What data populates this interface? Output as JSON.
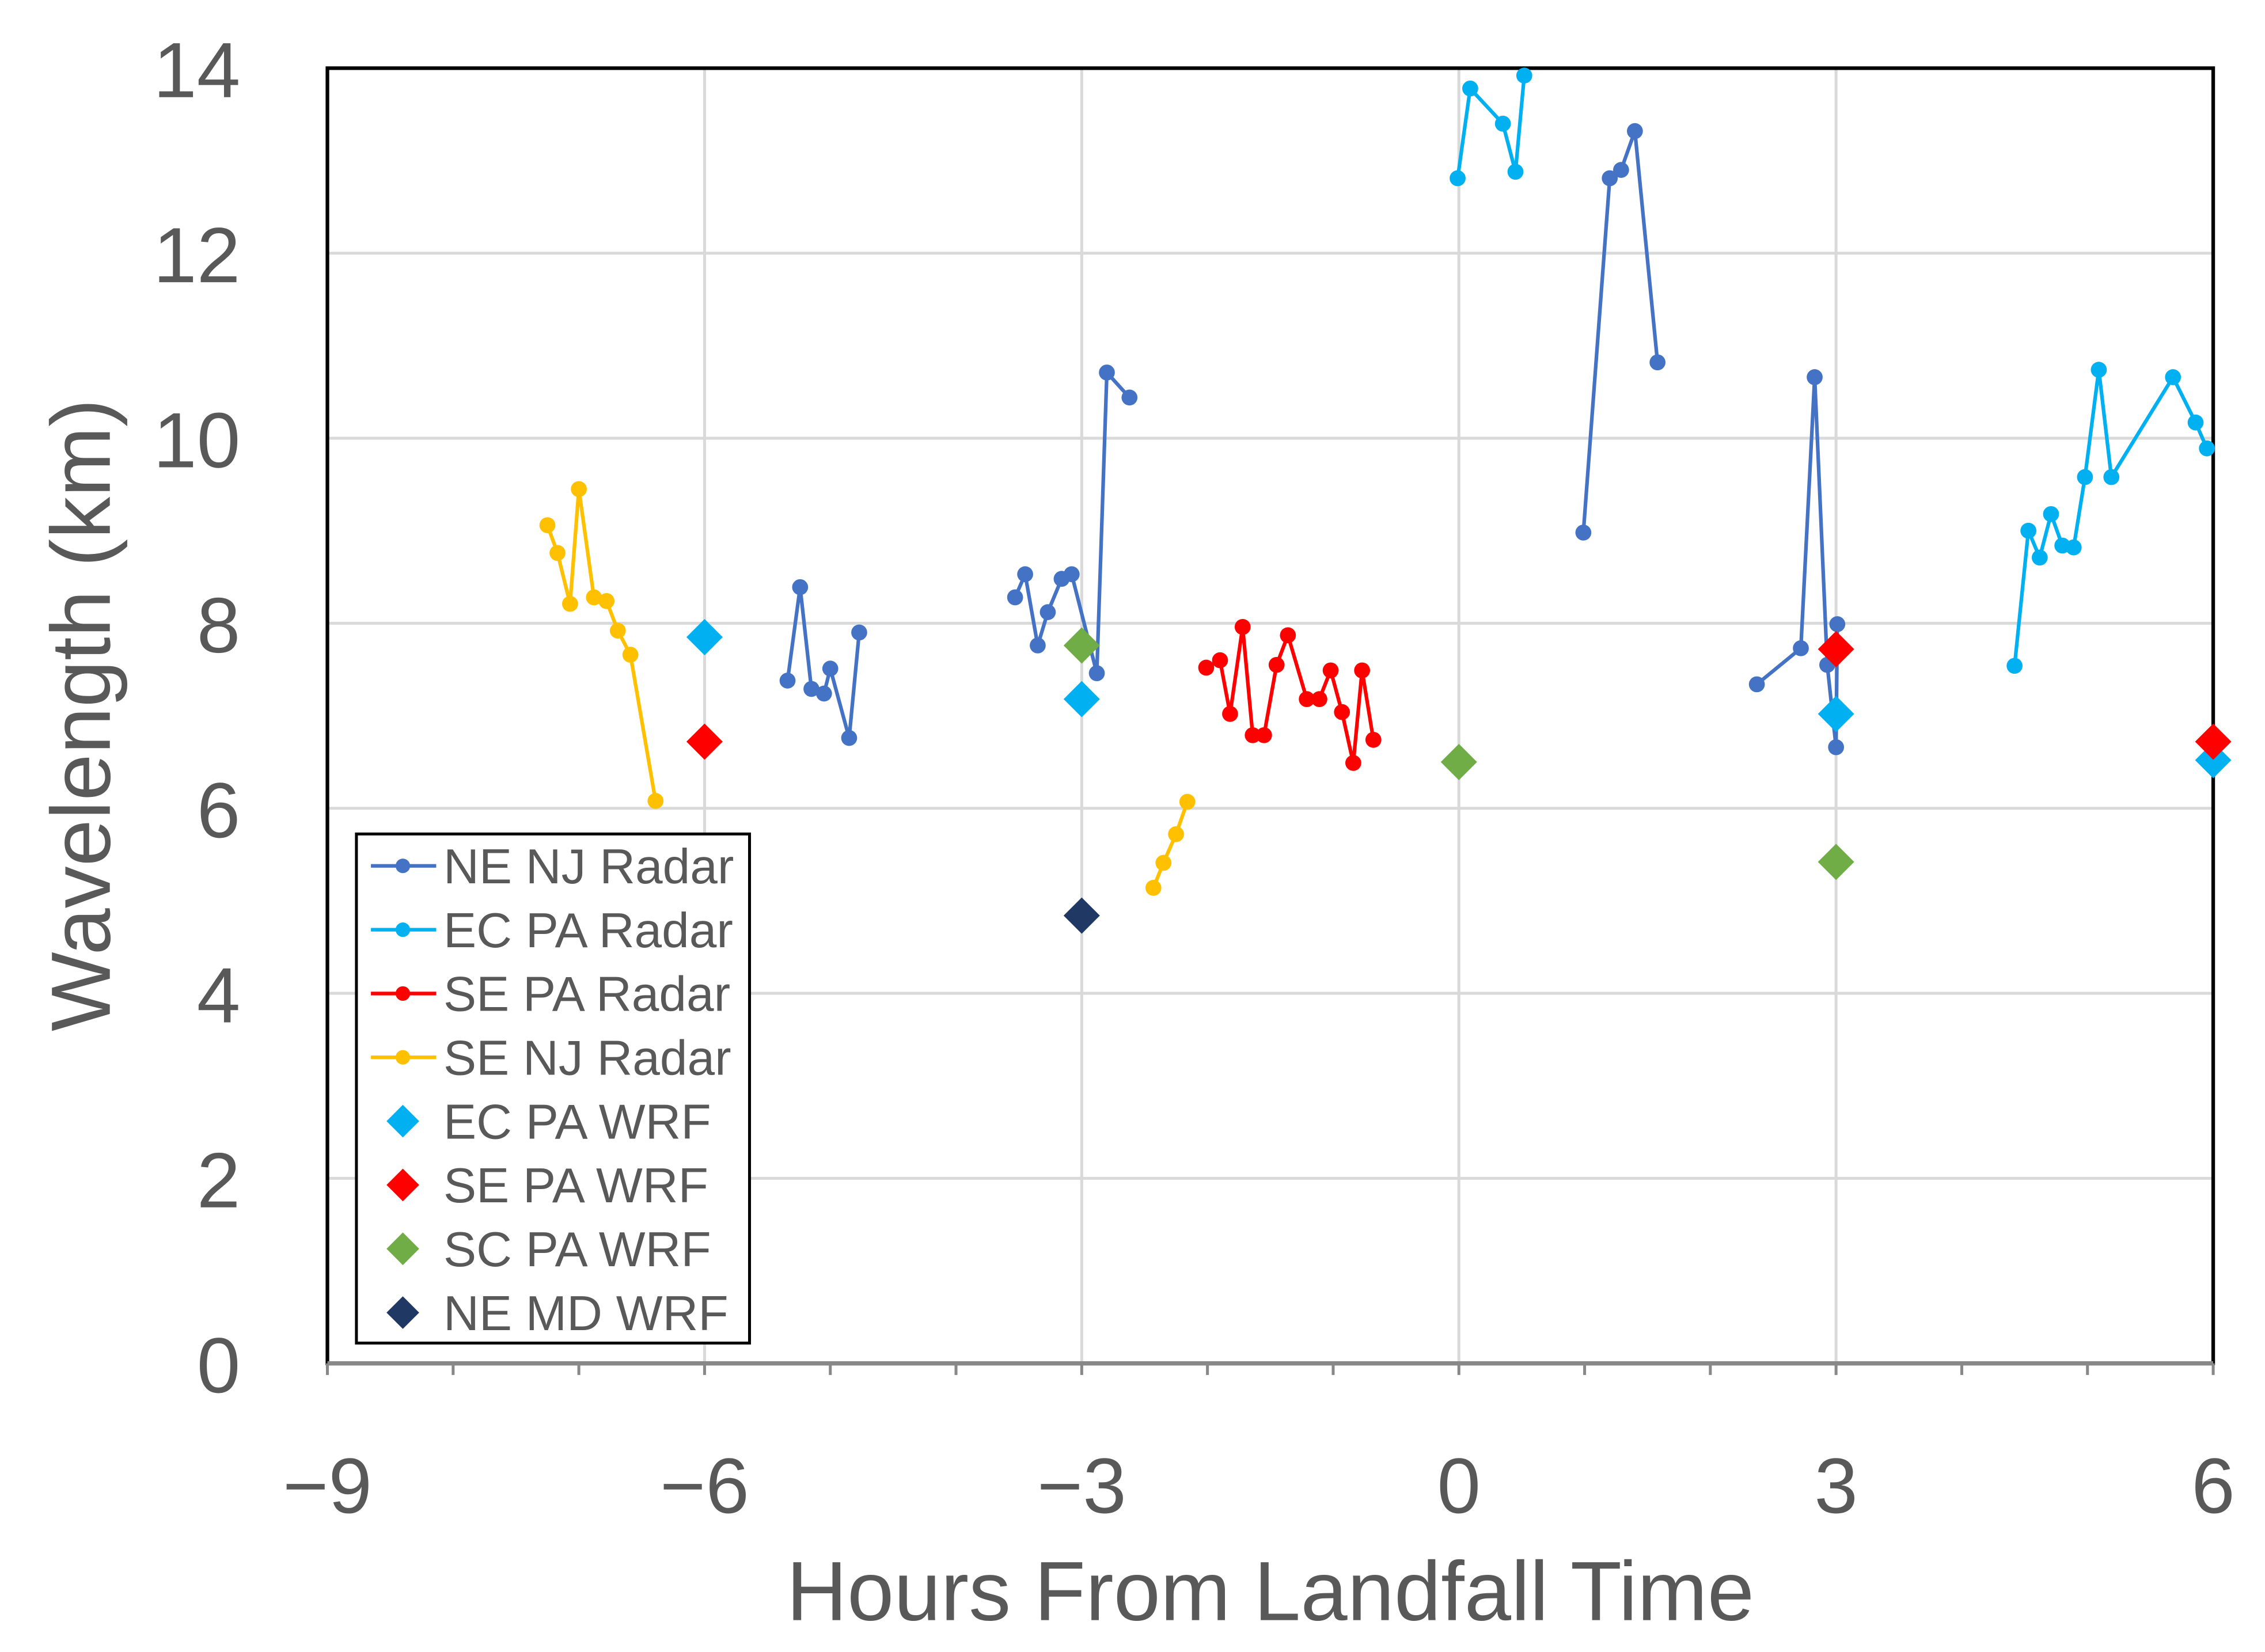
{
  "chart_data": {
    "type": "scatter",
    "title": "",
    "xlabel": "Hours From Landfall Time",
    "ylabel": "Wavelength (km)",
    "xlim": [
      -9,
      6
    ],
    "ylim": [
      0,
      14
    ],
    "x_ticks": [
      -9,
      -6,
      -3,
      0,
      3,
      6
    ],
    "x_tick_labels": [
      "−9",
      "−6",
      "−3",
      "0",
      "3",
      "6"
    ],
    "y_ticks": [
      0,
      2,
      4,
      6,
      8,
      10,
      12,
      14
    ],
    "y_tick_labels": [
      "0",
      "2",
      "4",
      "6",
      "8",
      "10",
      "12",
      "14"
    ],
    "grid": true,
    "legend_position": "bottom-left",
    "series": [
      {
        "name": "NE NJ Radar",
        "marker": "circle-line",
        "color": "#4472C4",
        "segments": [
          [
            [
              -5.34,
              7.38
            ],
            [
              -5.24,
              8.39
            ],
            [
              -5.15,
              7.29
            ],
            [
              -5.05,
              7.24
            ],
            [
              -5.0,
              7.51
            ],
            [
              -4.85,
              6.76
            ],
            [
              -4.77,
              7.9
            ]
          ],
          [
            [
              -3.53,
              8.28
            ],
            [
              -3.45,
              8.53
            ],
            [
              -3.35,
              7.76
            ],
            [
              -3.27,
              8.12
            ],
            [
              -3.16,
              8.48
            ],
            [
              -3.08,
              8.53
            ],
            [
              -2.88,
              7.46
            ],
            [
              -2.8,
              10.71
            ],
            [
              -2.62,
              10.44
            ]
          ],
          [
            [
              0.99,
              8.98
            ],
            [
              1.2,
              12.81
            ],
            [
              1.29,
              12.9
            ],
            [
              1.4,
              13.32
            ],
            [
              1.58,
              10.82
            ]
          ],
          [
            [
              2.37,
              7.34
            ],
            [
              2.72,
              7.73
            ],
            [
              2.83,
              10.66
            ],
            [
              2.93,
              7.55
            ],
            [
              3.0,
              6.66
            ],
            [
              3.01,
              7.99
            ]
          ]
        ]
      },
      {
        "name": "EC PA Radar",
        "marker": "circle-line",
        "color": "#00B0F0",
        "segments": [
          [
            [
              -0.01,
              12.81
            ],
            [
              0.09,
              13.78
            ],
            [
              0.35,
              13.4
            ],
            [
              0.45,
              12.88
            ],
            [
              0.52,
              13.92
            ]
          ],
          [
            [
              4.42,
              7.54
            ],
            [
              4.53,
              9.0
            ],
            [
              4.62,
              8.71
            ],
            [
              4.71,
              9.18
            ],
            [
              4.8,
              8.84
            ],
            [
              4.89,
              8.82
            ],
            [
              4.98,
              9.58
            ],
            [
              5.09,
              10.74
            ],
            [
              5.19,
              9.58
            ],
            [
              5.68,
              10.66
            ],
            [
              5.86,
              10.17
            ],
            [
              5.95,
              9.89
            ]
          ]
        ]
      },
      {
        "name": "SE PA Radar",
        "marker": "circle-line",
        "color": "#FF0000",
        "segments": [
          [
            [
              -2.01,
              7.52
            ],
            [
              -1.9,
              7.6
            ],
            [
              -1.82,
              7.02
            ],
            [
              -1.72,
              7.96
            ],
            [
              -1.64,
              6.79
            ],
            [
              -1.55,
              6.79
            ],
            [
              -1.45,
              7.55
            ],
            [
              -1.36,
              7.87
            ],
            [
              -1.21,
              7.18
            ],
            [
              -1.11,
              7.18
            ],
            [
              -1.02,
              7.49
            ],
            [
              -0.93,
              7.04
            ],
            [
              -0.84,
              6.49
            ],
            [
              -0.77,
              7.49
            ],
            [
              -0.68,
              6.74
            ]
          ]
        ]
      },
      {
        "name": "SE NJ Radar",
        "marker": "circle-line",
        "color": "#FFC000",
        "segments": [
          [
            [
              -7.25,
              9.06
            ],
            [
              -7.17,
              8.76
            ],
            [
              -7.07,
              8.21
            ],
            [
              -7.0,
              9.45
            ],
            [
              -6.88,
              8.28
            ],
            [
              -6.78,
              8.24
            ],
            [
              -6.69,
              7.92
            ],
            [
              -6.59,
              7.66
            ],
            [
              -6.39,
              6.08
            ]
          ],
          [
            [
              -2.43,
              5.14
            ],
            [
              -2.35,
              5.41
            ],
            [
              -2.25,
              5.72
            ],
            [
              -2.16,
              6.07
            ]
          ]
        ]
      },
      {
        "name": "EC PA WRF",
        "marker": "diamond",
        "color": "#00B0F0",
        "segments": [
          [
            [
              -6,
              7.85
            ],
            [
              -3,
              7.18
            ],
            [
              3,
              7.02
            ],
            [
              6,
              6.52
            ]
          ]
        ]
      },
      {
        "name": "SE PA WRF",
        "marker": "diamond",
        "color": "#FF0000",
        "segments": [
          [
            [
              -6,
              6.72
            ],
            [
              3,
              7.72
            ],
            [
              6,
              6.72
            ]
          ]
        ]
      },
      {
        "name": "SC PA WRF",
        "marker": "diamond",
        "color": "#70AD47",
        "segments": [
          [
            [
              -3,
              7.76
            ],
            [
              0,
              6.5
            ],
            [
              3,
              5.42
            ]
          ]
        ]
      },
      {
        "name": "NE MD WRF",
        "marker": "diamond",
        "color": "#203864",
        "segments": [
          [
            [
              -3,
              4.84
            ]
          ]
        ]
      }
    ]
  }
}
